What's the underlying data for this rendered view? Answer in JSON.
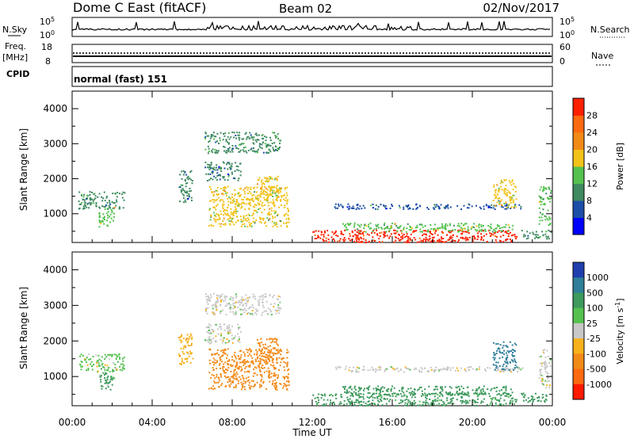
{
  "header": {
    "station": "Dome C East (fitACF)",
    "beam": "Beam 02",
    "date": "02/Nov/2017"
  },
  "strip_panels": {
    "nsky": {
      "label": "N.Sky",
      "tick_top": "10^5",
      "tick_bottom": "10^0"
    },
    "nsearch": {
      "label": "N.Search",
      "tick_top": "10^5",
      "tick_bottom": "10^0"
    },
    "freq": {
      "label_line1": "Freq.",
      "label_line2": "[MHz]",
      "tick_top": "18",
      "tick_bottom": "8"
    },
    "nave": {
      "label": "Nave",
      "tick_top": "60",
      "tick_bottom": "0"
    },
    "cpid": {
      "label": "CPID",
      "value": "normal (fast) 151"
    }
  },
  "chart_data": [
    {
      "type": "heatmap",
      "name": "power",
      "ylabel": "Slant Range [km]",
      "xlabel": "Time UT",
      "xlim": [
        "00:00",
        "24:00"
      ],
      "ylim": [
        180,
        4500
      ],
      "x_ticks": [
        "00:00",
        "04:00",
        "08:00",
        "12:00",
        "16:00",
        "20:00",
        "00:00"
      ],
      "y_ticks": [
        "1000",
        "2000",
        "3000",
        "4000"
      ],
      "colorbar": {
        "label": "Power [dB]",
        "ticks": [
          "4",
          "8",
          "12",
          "16",
          "20",
          "24",
          "28"
        ],
        "range": [
          0,
          30
        ],
        "colors": [
          "#0000ff",
          "#1d4ea8",
          "#3f8a60",
          "#55c24f",
          "#f2c21b",
          "#f28a18",
          "#ff6a10",
          "#ff2000"
        ]
      },
      "regions": [
        {
          "t0": 0.3,
          "t1": 2.6,
          "r0": 1150,
          "r1": 1650,
          "level": 9
        },
        {
          "t0": 1.3,
          "t1": 2.1,
          "r0": 650,
          "r1": 1250,
          "level": 14
        },
        {
          "t0": 5.3,
          "t1": 6.0,
          "r0": 1350,
          "r1": 2250,
          "level": 8
        },
        {
          "t0": 6.6,
          "t1": 10.4,
          "r0": 2750,
          "r1": 3350,
          "level": 10
        },
        {
          "t0": 6.6,
          "t1": 8.4,
          "r0": 1950,
          "r1": 2500,
          "level": 8
        },
        {
          "t0": 6.8,
          "t1": 10.8,
          "r0": 650,
          "r1": 1800,
          "level": 15
        },
        {
          "t0": 9.2,
          "t1": 10.3,
          "r0": 1400,
          "r1": 2100,
          "level": 17
        },
        {
          "t0": 12.0,
          "t1": 22.2,
          "r0": 200,
          "r1": 550,
          "level": 28
        },
        {
          "t0": 13.5,
          "t1": 22.0,
          "r0": 500,
          "r1": 750,
          "level": 14
        },
        {
          "t0": 13.0,
          "t1": 22.5,
          "r0": 1150,
          "r1": 1300,
          "level": 7
        },
        {
          "t0": 21.0,
          "t1": 22.2,
          "r0": 1200,
          "r1": 2000,
          "level": 16
        },
        {
          "t0": 22.4,
          "t1": 23.9,
          "r0": 300,
          "r1": 550,
          "level": 9
        },
        {
          "t0": 23.3,
          "t1": 23.9,
          "r0": 700,
          "r1": 1800,
          "level": 12
        }
      ]
    },
    {
      "type": "heatmap",
      "name": "velocity",
      "ylabel": "Slant Range [km]",
      "xlabel": "Time UT",
      "xlim": [
        "00:00",
        "24:00"
      ],
      "ylim": [
        180,
        4500
      ],
      "x_ticks": [
        "00:00",
        "04:00",
        "08:00",
        "12:00",
        "16:00",
        "20:00",
        "00:00"
      ],
      "y_ticks": [
        "1000",
        "2000",
        "3000",
        "4000"
      ],
      "colorbar": {
        "label": "Velocity [m s^-1]",
        "ticks": [
          "1000",
          "500",
          "100",
          "25",
          "-25",
          "-100",
          "-500",
          "-1000"
        ],
        "colors": [
          "#1f3fae",
          "#2f7f9a",
          "#3f9a5e",
          "#55c24f",
          "#c8c8c8",
          "#f7b21b",
          "#f28a18",
          "#ff6a10",
          "#ff1a00"
        ]
      },
      "regions": [
        {
          "t0": 0.3,
          "t1": 2.6,
          "r0": 1150,
          "r1": 1650,
          "level": 25
        },
        {
          "t0": 1.3,
          "t1": 2.1,
          "r0": 650,
          "r1": 1250,
          "level": 100
        },
        {
          "t0": 5.3,
          "t1": 6.0,
          "r0": 1350,
          "r1": 2250,
          "level": -100
        },
        {
          "t0": 6.6,
          "t1": 10.4,
          "r0": 2750,
          "r1": 3350,
          "level": 0
        },
        {
          "t0": 6.6,
          "t1": 8.4,
          "r0": 1950,
          "r1": 2500,
          "level": 0
        },
        {
          "t0": 6.8,
          "t1": 10.8,
          "r0": 650,
          "r1": 1800,
          "level": -300
        },
        {
          "t0": 9.2,
          "t1": 10.3,
          "r0": 1400,
          "r1": 2100,
          "level": -300
        },
        {
          "t0": 12.0,
          "t1": 22.2,
          "r0": 200,
          "r1": 550,
          "level": 150
        },
        {
          "t0": 13.5,
          "t1": 22.0,
          "r0": 500,
          "r1": 750,
          "level": 300
        },
        {
          "t0": 13.0,
          "t1": 22.5,
          "r0": 1150,
          "r1": 1300,
          "level": 0
        },
        {
          "t0": 21.0,
          "t1": 22.2,
          "r0": 1200,
          "r1": 2000,
          "level": 600
        },
        {
          "t0": 22.4,
          "t1": 23.9,
          "r0": 300,
          "r1": 550,
          "level": 300
        },
        {
          "t0": 23.3,
          "t1": 23.9,
          "r0": 700,
          "r1": 1800,
          "level": 0
        }
      ]
    }
  ]
}
